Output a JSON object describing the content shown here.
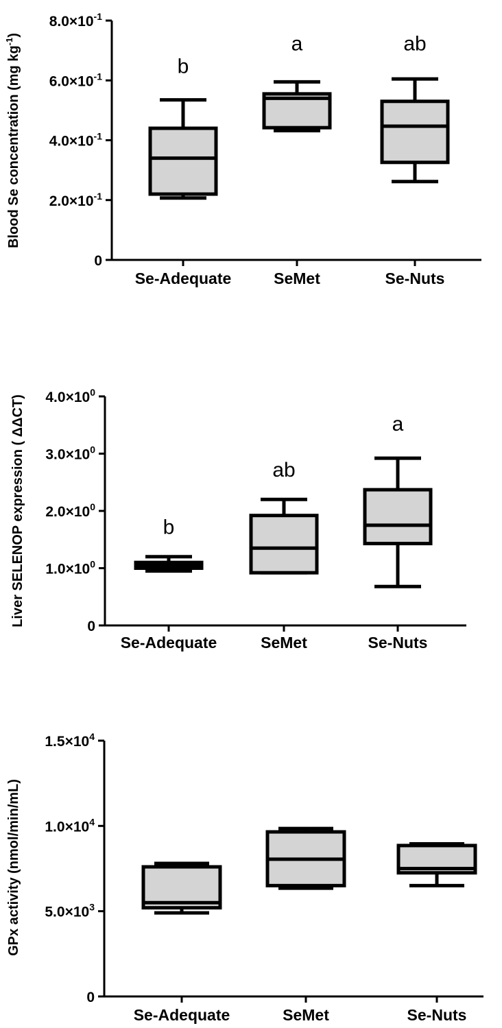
{
  "chart_data": [
    {
      "type": "box",
      "ylabel": "Blood Se concentration (mg kg-1)",
      "ylabel_main": "Blood Se concentration (mg kg",
      "ylabel_sup": "-1",
      "ylabel_end": ")",
      "categories": [
        "Se-Adequate",
        "SeMet",
        "Se-Nuts"
      ],
      "ylim": [
        0,
        0.8
      ],
      "yticks": [
        {
          "value": 0,
          "mant": "0",
          "exp": ""
        },
        {
          "value": 0.2,
          "mant": "2.0×10",
          "exp": "-1"
        },
        {
          "value": 0.4,
          "mant": "4.0×10",
          "exp": "-1"
        },
        {
          "value": 0.6,
          "mant": "6.0×10",
          "exp": "-1"
        },
        {
          "value": 0.8,
          "mant": "8.0×10",
          "exp": "-1"
        }
      ],
      "boxes": [
        {
          "min": 0.207,
          "q1": 0.22,
          "median": 0.34,
          "q3": 0.44,
          "max": 0.535
        },
        {
          "min": 0.432,
          "q1": 0.442,
          "median": 0.54,
          "q3": 0.555,
          "max": 0.595
        },
        {
          "min": 0.262,
          "q1": 0.326,
          "median": 0.447,
          "q3": 0.53,
          "max": 0.605
        }
      ],
      "significance": [
        "b",
        "a",
        "ab"
      ],
      "significance_y": [
        0.625,
        0.7,
        0.7
      ]
    },
    {
      "type": "box",
      "ylabel": "Liver SELENOP expression ( ΔΔCT)",
      "ylabel_main": "Liver SELENOP expression ( ΔΔCT)",
      "ylabel_sup": "",
      "ylabel_end": "",
      "categories": [
        "Se-Adequate",
        "SeMet",
        "Se-Nuts"
      ],
      "ylim": [
        0,
        4
      ],
      "yticks": [
        {
          "value": 0,
          "mant": "0",
          "exp": ""
        },
        {
          "value": 1,
          "mant": "1.0×10",
          "exp": "0"
        },
        {
          "value": 2,
          "mant": "2.0×10",
          "exp": "0"
        },
        {
          "value": 3,
          "mant": "3.0×10",
          "exp": "0"
        },
        {
          "value": 4,
          "mant": "4.0×10",
          "exp": "0"
        }
      ],
      "boxes": [
        {
          "min": 0.95,
          "q1": 1.0,
          "median": 1.05,
          "q3": 1.1,
          "max": 1.2
        },
        {
          "min": 0.92,
          "q1": 0.92,
          "median": 1.35,
          "q3": 1.92,
          "max": 2.2
        },
        {
          "min": 0.68,
          "q1": 1.43,
          "median": 1.75,
          "q3": 2.37,
          "max": 2.92
        }
      ],
      "significance": [
        "b",
        "ab",
        "a"
      ],
      "significance_y": [
        1.6,
        2.6,
        3.4
      ]
    },
    {
      "type": "box",
      "ylabel": "GPx activity (nmol/min/mL)",
      "ylabel_main": "GPx activity (nmol/min/mL)",
      "ylabel_sup": "",
      "ylabel_end": "",
      "categories": [
        "Se-Adequate",
        "SeMet",
        "Se-Nuts"
      ],
      "ylim": [
        0,
        15000
      ],
      "yticks": [
        {
          "value": 0,
          "mant": "0",
          "exp": ""
        },
        {
          "value": 5000,
          "mant": "5.0×10",
          "exp": "3"
        },
        {
          "value": 10000,
          "mant": "1.0×10",
          "exp": "4"
        },
        {
          "value": 15000,
          "mant": "1.5×10",
          "exp": "4"
        }
      ],
      "boxes": [
        {
          "min": 4900,
          "q1": 5200,
          "median": 5500,
          "q3": 7600,
          "max": 7800
        },
        {
          "min": 6350,
          "q1": 6500,
          "median": 8050,
          "q3": 9650,
          "max": 9850
        },
        {
          "min": 6500,
          "q1": 7250,
          "median": 7500,
          "q3": 8850,
          "max": 8950
        }
      ],
      "significance": [],
      "significance_y": []
    }
  ]
}
